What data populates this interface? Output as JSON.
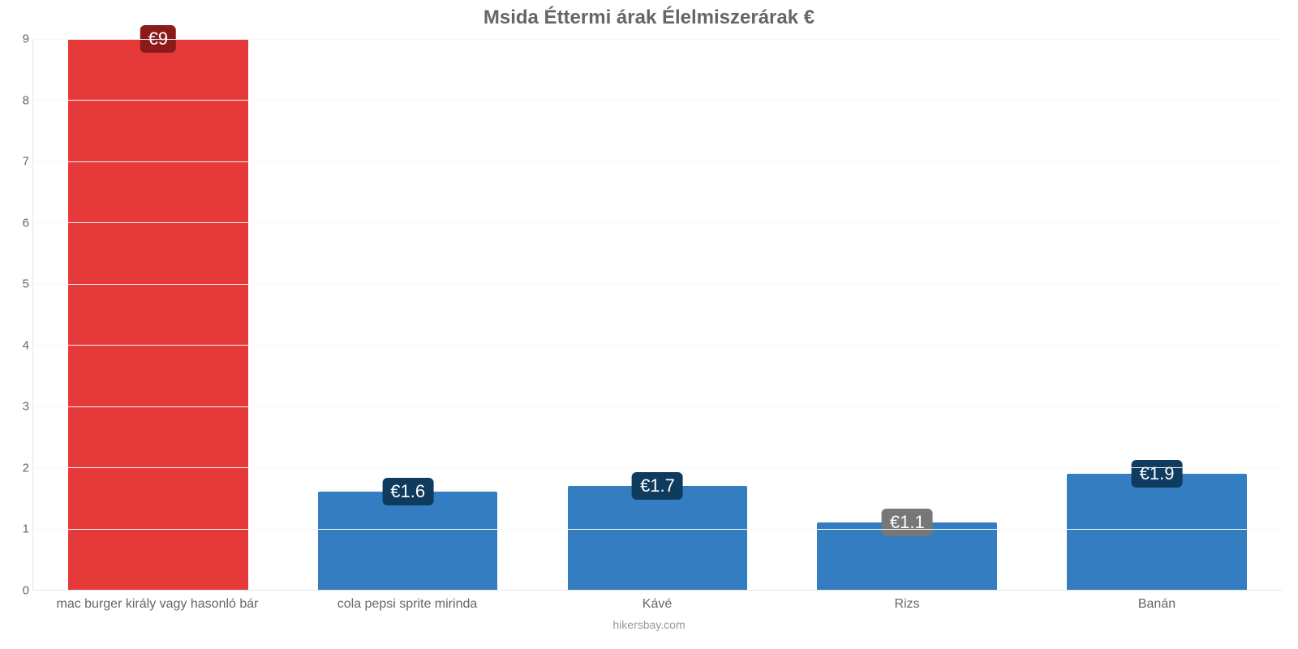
{
  "chart": {
    "type": "bar",
    "title": "Msida Éttermi árak Élelmiszerárak €",
    "title_fontsize": 24,
    "title_color": "#666666",
    "caption": "hikersbay.com",
    "caption_color": "#999999",
    "background_color": "#ffffff",
    "grid_color": "#f7f7f7",
    "axis_color": "#e6e6e6",
    "tick_font_color": "#666666",
    "tick_fontsize": 15,
    "xlabel_fontsize": 16,
    "ylim": [
      0,
      9
    ],
    "ytick_step": 1,
    "yticks": [
      0,
      1,
      2,
      3,
      4,
      5,
      6,
      7,
      8,
      9
    ],
    "bar_width_ratio": 0.72,
    "categories": [
      "mac burger király vagy hasonló bár",
      "cola pepsi sprite mirinda",
      "Kávé",
      "Rizs",
      "Banán"
    ],
    "values": [
      9,
      1.6,
      1.7,
      1.1,
      1.9
    ],
    "value_labels": [
      "€9",
      "€1.6",
      "€1.7",
      "€1.1",
      "€1.9"
    ],
    "bar_colors": [
      "#e63939",
      "#347dc1",
      "#347dc1",
      "#347dc1",
      "#347dc1"
    ],
    "badge_bg_colors": [
      "#8b1a1a",
      "#0f3b5f",
      "#0f3b5f",
      "#777777",
      "#0f3b5f"
    ],
    "badge_text_color": "#ffffff",
    "badge_fontsize": 22
  }
}
